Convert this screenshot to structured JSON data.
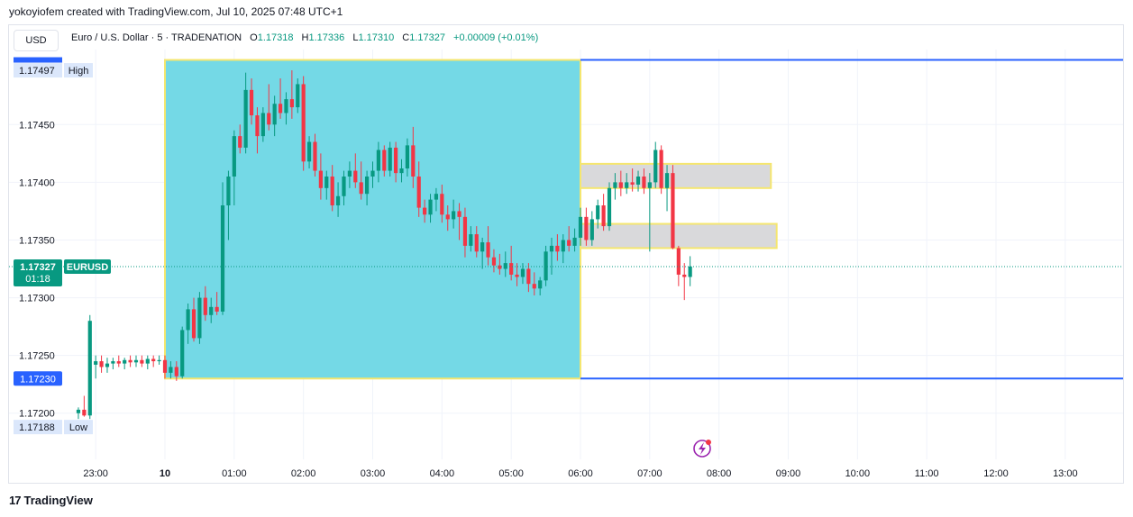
{
  "header": {
    "credit": "yokoyiofem created with TradingView.com, Jul 10, 2025 07:48 UTC+1"
  },
  "toolbar": {
    "currency": "USD"
  },
  "legend": {
    "symbol": "Euro / U.S. Dollar · 5 · TRADENATION",
    "open_label": "O",
    "open": "1.17318",
    "high_label": "H",
    "high": "1.17336",
    "low_label": "L",
    "low": "1.17310",
    "close_label": "C",
    "close": "1.17327",
    "change": "+0.00009 (+0.01%)"
  },
  "footer": {
    "brand": "TradingView",
    "logo_mark": "17"
  },
  "colors": {
    "up": "#089981",
    "down": "#f23645",
    "box_fill": "#74d9e6",
    "box_border": "#f5e66f",
    "zone_fill": "#d9d9db",
    "level_line": "#2962ff",
    "price_tag": "#089981",
    "level_tag": "#2962ff",
    "lightning": "#9c27b0"
  },
  "chart_data": {
    "type": "candlestick",
    "symbol_tag": "EURUSD",
    "ylim": [
      1.1716,
      1.17515
    ],
    "y_ticks": [
      1.172,
      1.1725,
      1.173,
      1.1735,
      1.174,
      1.1745
    ],
    "y_tick_labels": [
      "1.17200",
      "1.17250",
      "1.17300",
      "1.17350",
      "1.17400",
      "1.17450"
    ],
    "x_ticks": [
      {
        "label": "23:00",
        "t": -60,
        "bold": false
      },
      {
        "label": "10",
        "t": 0,
        "bold": true
      },
      {
        "label": "01:00",
        "t": 60,
        "bold": false
      },
      {
        "label": "02:00",
        "t": 120,
        "bold": false
      },
      {
        "label": "03:00",
        "t": 180,
        "bold": false
      },
      {
        "label": "04:00",
        "t": 240,
        "bold": false
      },
      {
        "label": "05:00",
        "t": 300,
        "bold": false
      },
      {
        "label": "06:00",
        "t": 360,
        "bold": false
      },
      {
        "label": "07:00",
        "t": 420,
        "bold": false
      },
      {
        "label": "08:00",
        "t": 480,
        "bold": false
      },
      {
        "label": "09:00",
        "t": 540,
        "bold": false
      },
      {
        "label": "10:00",
        "t": 600,
        "bold": false
      },
      {
        "label": "11:00",
        "t": 660,
        "bold": false
      },
      {
        "label": "12:00",
        "t": 720,
        "bold": false
      },
      {
        "label": "13:00",
        "t": 780,
        "bold": false
      }
    ],
    "last_price": {
      "value": 1.17327,
      "label": "1.17327",
      "countdown": "01:18"
    },
    "session_high": {
      "value": 1.17497,
      "label": "1.17497",
      "tag": "High"
    },
    "session_low": {
      "value": 1.17188,
      "label": "1.17188",
      "tag": "Low"
    },
    "level_lines": [
      {
        "value": 1.17506,
        "from_t": 360,
        "label": ""
      },
      {
        "value": 1.1723,
        "from_t": 360,
        "label": "1.17230"
      }
    ],
    "range_box": {
      "t_start": 0,
      "t_end": 360,
      "top": 1.17506,
      "bottom": 1.1723
    },
    "zones": [
      {
        "t_start": 360,
        "t_end": 525,
        "top": 1.17416,
        "bottom": 1.17395
      },
      {
        "t_start": 360,
        "t_end": 530,
        "top": 1.17364,
        "bottom": 1.17343
      }
    ],
    "candles": [
      {
        "t": -75,
        "o": 1.172,
        "h": 1.17205,
        "l": 1.17195,
        "c": 1.17203
      },
      {
        "t": -70,
        "o": 1.17203,
        "h": 1.17215,
        "l": 1.17197,
        "c": 1.17198
      },
      {
        "t": -65,
        "o": 1.17198,
        "h": 1.17285,
        "l": 1.17195,
        "c": 1.1728
      },
      {
        "t": -60,
        "o": 1.17242,
        "h": 1.1725,
        "l": 1.1723,
        "c": 1.17245
      },
      {
        "t": -55,
        "o": 1.17245,
        "h": 1.1725,
        "l": 1.17235,
        "c": 1.1724
      },
      {
        "t": -50,
        "o": 1.1724,
        "h": 1.17248,
        "l": 1.17235,
        "c": 1.17243
      },
      {
        "t": -45,
        "o": 1.17243,
        "h": 1.17248,
        "l": 1.17238,
        "c": 1.17245
      },
      {
        "t": -40,
        "o": 1.17245,
        "h": 1.1725,
        "l": 1.1724,
        "c": 1.17243
      },
      {
        "t": -35,
        "o": 1.17243,
        "h": 1.17248,
        "l": 1.17238,
        "c": 1.17246
      },
      {
        "t": -30,
        "o": 1.17246,
        "h": 1.1725,
        "l": 1.1724,
        "c": 1.17244
      },
      {
        "t": -25,
        "o": 1.17244,
        "h": 1.1725,
        "l": 1.1724,
        "c": 1.17246
      },
      {
        "t": -20,
        "o": 1.17246,
        "h": 1.1725,
        "l": 1.1724,
        "c": 1.17243
      },
      {
        "t": -15,
        "o": 1.17243,
        "h": 1.1725,
        "l": 1.17238,
        "c": 1.17247
      },
      {
        "t": -10,
        "o": 1.17247,
        "h": 1.1725,
        "l": 1.1724,
        "c": 1.17245
      },
      {
        "t": -5,
        "o": 1.17245,
        "h": 1.1725,
        "l": 1.17242,
        "c": 1.17246
      },
      {
        "t": 0,
        "o": 1.17246,
        "h": 1.1725,
        "l": 1.1723,
        "c": 1.17235
      },
      {
        "t": 5,
        "o": 1.17235,
        "h": 1.17245,
        "l": 1.1723,
        "c": 1.1724
      },
      {
        "t": 10,
        "o": 1.1724,
        "h": 1.17245,
        "l": 1.17228,
        "c": 1.17232
      },
      {
        "t": 15,
        "o": 1.17232,
        "h": 1.17275,
        "l": 1.1723,
        "c": 1.17272
      },
      {
        "t": 20,
        "o": 1.17272,
        "h": 1.17295,
        "l": 1.1726,
        "c": 1.1729
      },
      {
        "t": 25,
        "o": 1.1729,
        "h": 1.173,
        "l": 1.17262,
        "c": 1.17265
      },
      {
        "t": 30,
        "o": 1.17265,
        "h": 1.17305,
        "l": 1.1726,
        "c": 1.173
      },
      {
        "t": 35,
        "o": 1.173,
        "h": 1.1731,
        "l": 1.1728,
        "c": 1.17285
      },
      {
        "t": 40,
        "o": 1.17285,
        "h": 1.173,
        "l": 1.17278,
        "c": 1.17292
      },
      {
        "t": 45,
        "o": 1.17292,
        "h": 1.17305,
        "l": 1.17285,
        "c": 1.17288
      },
      {
        "t": 50,
        "o": 1.17288,
        "h": 1.174,
        "l": 1.17285,
        "c": 1.1738
      },
      {
        "t": 55,
        "o": 1.1738,
        "h": 1.1741,
        "l": 1.1735,
        "c": 1.17405
      },
      {
        "t": 60,
        "o": 1.17405,
        "h": 1.17445,
        "l": 1.1738,
        "c": 1.1744
      },
      {
        "t": 65,
        "o": 1.1744,
        "h": 1.1745,
        "l": 1.17425,
        "c": 1.1743
      },
      {
        "t": 70,
        "o": 1.1743,
        "h": 1.17495,
        "l": 1.17425,
        "c": 1.1748
      },
      {
        "t": 75,
        "o": 1.1748,
        "h": 1.1749,
        "l": 1.1745,
        "c": 1.17458
      },
      {
        "t": 80,
        "o": 1.17458,
        "h": 1.17465,
        "l": 1.17425,
        "c": 1.1744
      },
      {
        "t": 85,
        "o": 1.1744,
        "h": 1.17465,
        "l": 1.17435,
        "c": 1.1746
      },
      {
        "t": 90,
        "o": 1.1746,
        "h": 1.17485,
        "l": 1.17445,
        "c": 1.1745
      },
      {
        "t": 95,
        "o": 1.1745,
        "h": 1.17475,
        "l": 1.1744,
        "c": 1.17468
      },
      {
        "t": 100,
        "o": 1.17468,
        "h": 1.1749,
        "l": 1.17455,
        "c": 1.1746
      },
      {
        "t": 105,
        "o": 1.1746,
        "h": 1.17478,
        "l": 1.1745,
        "c": 1.17472
      },
      {
        "t": 110,
        "o": 1.17472,
        "h": 1.17497,
        "l": 1.17455,
        "c": 1.17465
      },
      {
        "t": 115,
        "o": 1.17465,
        "h": 1.1749,
        "l": 1.1746,
        "c": 1.17485
      },
      {
        "t": 120,
        "o": 1.17485,
        "h": 1.17492,
        "l": 1.1741,
        "c": 1.17418
      },
      {
        "t": 125,
        "o": 1.17418,
        "h": 1.1744,
        "l": 1.17412,
        "c": 1.17435
      },
      {
        "t": 130,
        "o": 1.17435,
        "h": 1.17442,
        "l": 1.17405,
        "c": 1.1741
      },
      {
        "t": 135,
        "o": 1.1741,
        "h": 1.17425,
        "l": 1.17385,
        "c": 1.17395
      },
      {
        "t": 140,
        "o": 1.17395,
        "h": 1.1741,
        "l": 1.17385,
        "c": 1.17405
      },
      {
        "t": 145,
        "o": 1.17405,
        "h": 1.17415,
        "l": 1.17375,
        "c": 1.1738
      },
      {
        "t": 150,
        "o": 1.1738,
        "h": 1.174,
        "l": 1.1737,
        "c": 1.17388
      },
      {
        "t": 155,
        "o": 1.17388,
        "h": 1.1741,
        "l": 1.1738,
        "c": 1.17405
      },
      {
        "t": 160,
        "o": 1.17405,
        "h": 1.17418,
        "l": 1.17395,
        "c": 1.1741
      },
      {
        "t": 165,
        "o": 1.1741,
        "h": 1.17425,
        "l": 1.17395,
        "c": 1.174
      },
      {
        "t": 170,
        "o": 1.174,
        "h": 1.17418,
        "l": 1.17385,
        "c": 1.1739
      },
      {
        "t": 175,
        "o": 1.1739,
        "h": 1.1741,
        "l": 1.1738,
        "c": 1.17405
      },
      {
        "t": 180,
        "o": 1.17405,
        "h": 1.17418,
        "l": 1.17395,
        "c": 1.1741
      },
      {
        "t": 185,
        "o": 1.1741,
        "h": 1.17435,
        "l": 1.174,
        "c": 1.17428
      },
      {
        "t": 190,
        "o": 1.17428,
        "h": 1.17432,
        "l": 1.17405,
        "c": 1.1741
      },
      {
        "t": 195,
        "o": 1.1741,
        "h": 1.17435,
        "l": 1.17405,
        "c": 1.1743
      },
      {
        "t": 200,
        "o": 1.1743,
        "h": 1.17435,
        "l": 1.174,
        "c": 1.17408
      },
      {
        "t": 205,
        "o": 1.17408,
        "h": 1.1742,
        "l": 1.174,
        "c": 1.17412
      },
      {
        "t": 210,
        "o": 1.17412,
        "h": 1.17438,
        "l": 1.17405,
        "c": 1.17432
      },
      {
        "t": 215,
        "o": 1.17432,
        "h": 1.17448,
        "l": 1.17395,
        "c": 1.17405
      },
      {
        "t": 220,
        "o": 1.17405,
        "h": 1.17418,
        "l": 1.1737,
        "c": 1.17378
      },
      {
        "t": 225,
        "o": 1.17378,
        "h": 1.17385,
        "l": 1.17365,
        "c": 1.17372
      },
      {
        "t": 230,
        "o": 1.17372,
        "h": 1.1739,
        "l": 1.17365,
        "c": 1.17385
      },
      {
        "t": 235,
        "o": 1.17385,
        "h": 1.17395,
        "l": 1.17375,
        "c": 1.1739
      },
      {
        "t": 240,
        "o": 1.1739,
        "h": 1.17398,
        "l": 1.17365,
        "c": 1.17372
      },
      {
        "t": 245,
        "o": 1.17372,
        "h": 1.1738,
        "l": 1.17358,
        "c": 1.17368
      },
      {
        "t": 250,
        "o": 1.17368,
        "h": 1.17385,
        "l": 1.1736,
        "c": 1.17375
      },
      {
        "t": 255,
        "o": 1.17375,
        "h": 1.17382,
        "l": 1.1735,
        "c": 1.1737
      },
      {
        "t": 260,
        "o": 1.1737,
        "h": 1.17378,
        "l": 1.17335,
        "c": 1.17345
      },
      {
        "t": 265,
        "o": 1.17345,
        "h": 1.17362,
        "l": 1.1734,
        "c": 1.17355
      },
      {
        "t": 270,
        "o": 1.17355,
        "h": 1.17362,
        "l": 1.17335,
        "c": 1.1734
      },
      {
        "t": 275,
        "o": 1.1734,
        "h": 1.17352,
        "l": 1.17325,
        "c": 1.17348
      },
      {
        "t": 280,
        "o": 1.17348,
        "h": 1.17362,
        "l": 1.17328,
        "c": 1.17335
      },
      {
        "t": 285,
        "o": 1.17335,
        "h": 1.17342,
        "l": 1.17322,
        "c": 1.17328
      },
      {
        "t": 290,
        "o": 1.17328,
        "h": 1.17338,
        "l": 1.1732,
        "c": 1.17325
      },
      {
        "t": 295,
        "o": 1.17325,
        "h": 1.1734,
        "l": 1.17318,
        "c": 1.1733
      },
      {
        "t": 300,
        "o": 1.1733,
        "h": 1.17345,
        "l": 1.17315,
        "c": 1.1732
      },
      {
        "t": 305,
        "o": 1.1732,
        "h": 1.1733,
        "l": 1.1731,
        "c": 1.17318
      },
      {
        "t": 310,
        "o": 1.17318,
        "h": 1.1733,
        "l": 1.17312,
        "c": 1.17325
      },
      {
        "t": 315,
        "o": 1.17325,
        "h": 1.1733,
        "l": 1.17305,
        "c": 1.17312
      },
      {
        "t": 320,
        "o": 1.17312,
        "h": 1.17322,
        "l": 1.17302,
        "c": 1.17308
      },
      {
        "t": 325,
        "o": 1.17308,
        "h": 1.17318,
        "l": 1.17302,
        "c": 1.17315
      },
      {
        "t": 330,
        "o": 1.17315,
        "h": 1.17345,
        "l": 1.1731,
        "c": 1.1734
      },
      {
        "t": 335,
        "o": 1.1734,
        "h": 1.17352,
        "l": 1.1732,
        "c": 1.17345
      },
      {
        "t": 340,
        "o": 1.17345,
        "h": 1.17355,
        "l": 1.17332,
        "c": 1.1734
      },
      {
        "t": 345,
        "o": 1.1734,
        "h": 1.17355,
        "l": 1.1733,
        "c": 1.1735
      },
      {
        "t": 350,
        "o": 1.1735,
        "h": 1.17362,
        "l": 1.1734,
        "c": 1.17345
      },
      {
        "t": 355,
        "o": 1.17345,
        "h": 1.1736,
        "l": 1.1734,
        "c": 1.17352
      },
      {
        "t": 360,
        "o": 1.17352,
        "h": 1.17378,
        "l": 1.17345,
        "c": 1.1737
      },
      {
        "t": 365,
        "o": 1.1737,
        "h": 1.17378,
        "l": 1.17345,
        "c": 1.1735
      },
      {
        "t": 370,
        "o": 1.1735,
        "h": 1.17375,
        "l": 1.17345,
        "c": 1.17368
      },
      {
        "t": 375,
        "o": 1.17368,
        "h": 1.17385,
        "l": 1.1736,
        "c": 1.1738
      },
      {
        "t": 380,
        "o": 1.1738,
        "h": 1.1739,
        "l": 1.17358,
        "c": 1.17362
      },
      {
        "t": 385,
        "o": 1.17362,
        "h": 1.174,
        "l": 1.17358,
        "c": 1.17395
      },
      {
        "t": 390,
        "o": 1.17395,
        "h": 1.17408,
        "l": 1.17385,
        "c": 1.174
      },
      {
        "t": 395,
        "o": 1.174,
        "h": 1.1741,
        "l": 1.17388,
        "c": 1.17395
      },
      {
        "t": 400,
        "o": 1.17395,
        "h": 1.17408,
        "l": 1.1739,
        "c": 1.174
      },
      {
        "t": 405,
        "o": 1.174,
        "h": 1.17412,
        "l": 1.17392,
        "c": 1.17398
      },
      {
        "t": 410,
        "o": 1.17398,
        "h": 1.1741,
        "l": 1.17392,
        "c": 1.17405
      },
      {
        "t": 415,
        "o": 1.17405,
        "h": 1.17412,
        "l": 1.1739,
        "c": 1.17395
      },
      {
        "t": 420,
        "o": 1.17395,
        "h": 1.17408,
        "l": 1.1734,
        "c": 1.174
      },
      {
        "t": 425,
        "o": 1.174,
        "h": 1.17435,
        "l": 1.17395,
        "c": 1.17428
      },
      {
        "t": 430,
        "o": 1.17428,
        "h": 1.17432,
        "l": 1.1739,
        "c": 1.17395
      },
      {
        "t": 435,
        "o": 1.17395,
        "h": 1.17415,
        "l": 1.17375,
        "c": 1.17408
      },
      {
        "t": 440,
        "o": 1.17408,
        "h": 1.17415,
        "l": 1.17342,
        "c": 1.17343
      },
      {
        "t": 445,
        "o": 1.17343,
        "h": 1.17345,
        "l": 1.1731,
        "c": 1.1732
      },
      {
        "t": 450,
        "o": 1.1732,
        "h": 1.1733,
        "l": 1.17298,
        "c": 1.17318
      },
      {
        "t": 455,
        "o": 1.17318,
        "h": 1.17336,
        "l": 1.1731,
        "c": 1.17327
      }
    ]
  }
}
